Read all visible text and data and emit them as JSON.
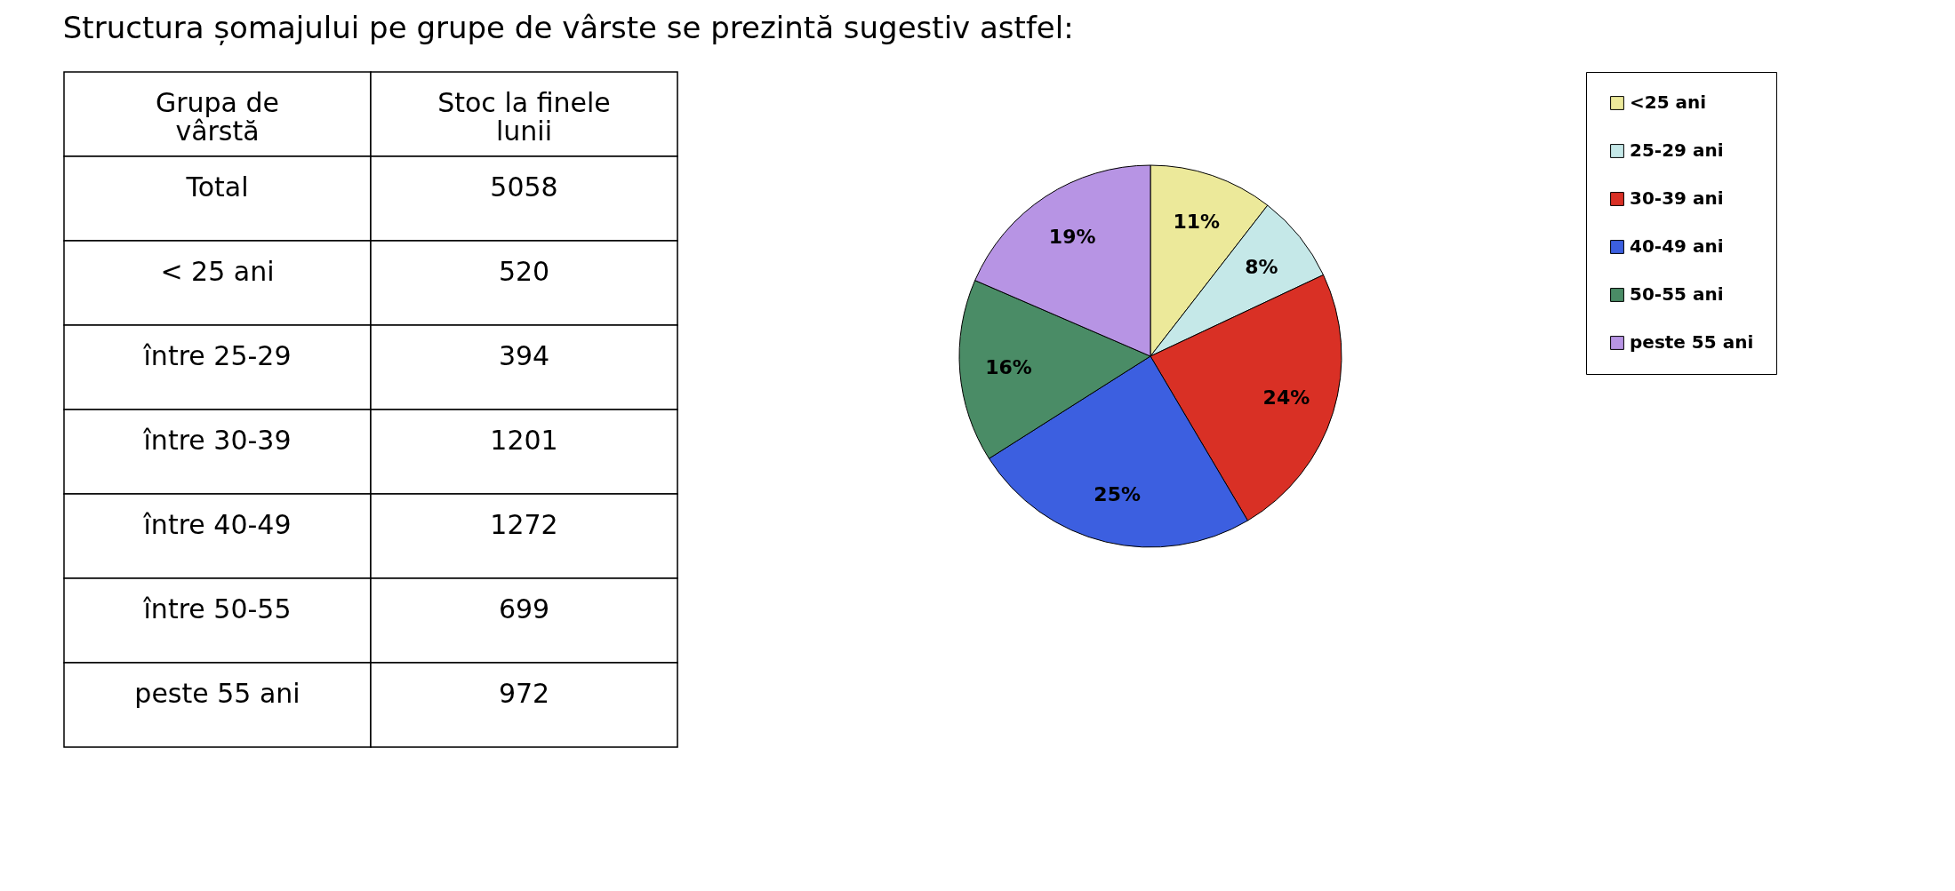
{
  "chart_data": [
    {
      "type": "other",
      "title": "Structura șomajului pe grupe de vârste se prezintă sugestiv astfel:",
      "annotations": [
        "Grupa de vârstă",
        "Stoc la finele lunii"
      ],
      "categories": [
        "Total",
        "< 25 ani",
        "între 25-29",
        "între 30-39",
        "între 40-49",
        "între 50-55",
        "peste 55 ani"
      ],
      "values": [
        5058,
        520,
        394,
        1201,
        1272,
        699,
        972
      ],
      "data_labels": true
    },
    {
      "type": "pie",
      "categories": [
        "<25 ani",
        "25-29 ani",
        "30-39 ani",
        "40-49 ani",
        "50-55 ani",
        "peste 55 ani"
      ],
      "values": [
        10.5,
        7.5,
        23.5,
        24.5,
        15.5,
        18.5
      ],
      "value_labels": [
        "11%",
        "8%",
        "24%",
        "25%",
        "16%",
        "19%"
      ],
      "colors": [
        "#ece99a",
        "#c5e8e8",
        "#d93025",
        "#3c5fe0",
        "#4a8c66",
        "#b794e4"
      ],
      "legend": "right"
    }
  ]
}
